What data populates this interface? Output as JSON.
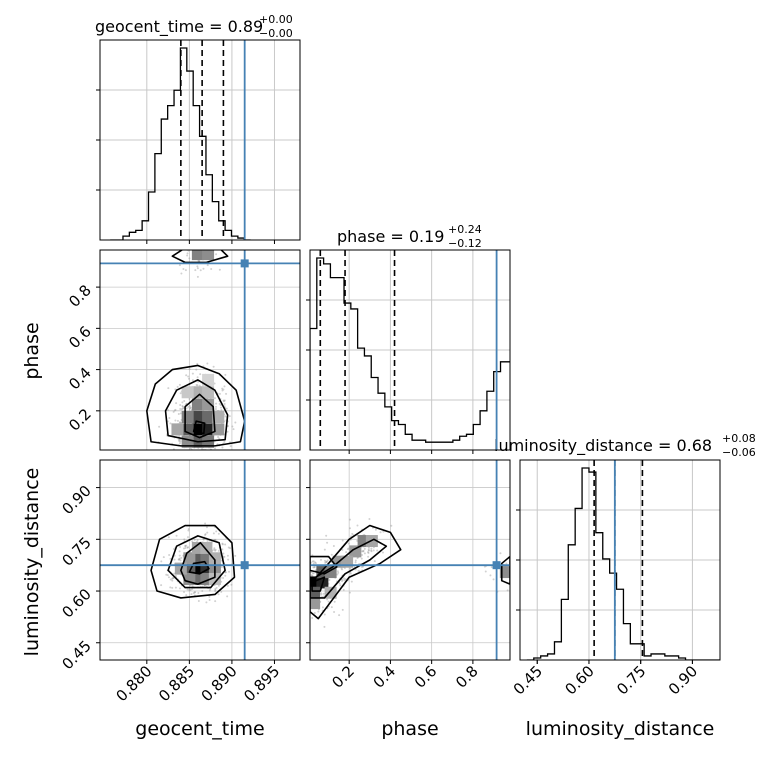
{
  "chart_data": {
    "type": "corner",
    "colors": {
      "truth": "#4682b4",
      "hist": "#000000",
      "grid": "#c8c8c8",
      "points": "#9a9a9a"
    },
    "parameters": [
      {
        "name": "geocent_time",
        "truth": 0.8915,
        "range": [
          0.8745,
          0.898
        ],
        "ticks": [
          "0.880",
          "0.885",
          "0.890",
          "0.895"
        ],
        "ticks_values": [
          0.88,
          0.885,
          0.89,
          0.895
        ],
        "title_main": "geocent_time = 0.89",
        "title_sup": "+0.00",
        "title_sub": "−0.00",
        "quantiles": [
          0.884,
          0.8865,
          0.889
        ],
        "hist_edges_start": 0.8757,
        "hist_bin_width": 0.00075,
        "hist_counts": [
          0,
          0,
          2,
          4,
          5,
          10,
          25,
          45,
          63,
          70,
          78,
          100,
          88,
          70,
          54,
          34,
          20,
          10,
          5,
          2,
          1,
          0
        ]
      },
      {
        "name": "phase",
        "truth": 0.915,
        "range": [
          0.01,
          0.98
        ],
        "ticks": [
          "0.2",
          "0.4",
          "0.6",
          "0.8"
        ],
        "ticks_values": [
          0.2,
          0.4,
          0.6,
          0.8
        ],
        "title_main": "phase = 0.19",
        "title_sup": "+0.24",
        "title_sub": "−0.12",
        "quantiles": [
          0.06,
          0.18,
          0.42
        ],
        "hist_edges_start": 0.01,
        "hist_bin_width": 0.033,
        "hist_counts": [
          62,
          98,
          95,
          88,
          88,
          75,
          72,
          52,
          48,
          37,
          29,
          22,
          15,
          13,
          8,
          5,
          5,
          4,
          4,
          4,
          4,
          5,
          7,
          8,
          13,
          20,
          30,
          40,
          45,
          45
        ]
      },
      {
        "name": "luminosity_distance",
        "truth": 0.675,
        "range": [
          0.4,
          0.98
        ],
        "ticks": [
          "0.45",
          "0.60",
          "0.75",
          "0.90"
        ],
        "ticks_values": [
          0.45,
          0.6,
          0.75,
          0.9
        ],
        "title_main": "luminosity_distance = 0.68",
        "title_sup": "+0.08",
        "title_sub": "−0.06",
        "quantiles": [
          0.615,
          0.675,
          0.755
        ],
        "hist_edges_start": 0.42,
        "hist_bin_width": 0.02,
        "hist_counts": [
          0,
          1,
          2,
          3,
          9,
          30,
          57,
          75,
          95,
          93,
          63,
          50,
          43,
          35,
          18,
          8,
          8,
          2,
          3,
          3,
          2,
          2,
          1,
          0,
          0,
          0,
          0,
          0
        ]
      }
    ],
    "pairs": [
      {
        "x": "geocent_time",
        "y": "phase",
        "truth_point": [
          0.8915,
          0.915
        ],
        "contours": [
          [
            [
              0.8805,
              0.05
            ],
            [
              0.88,
              0.2
            ],
            [
              0.881,
              0.33
            ],
            [
              0.883,
              0.4
            ],
            [
              0.886,
              0.42
            ],
            [
              0.8885,
              0.38
            ],
            [
              0.8905,
              0.3
            ],
            [
              0.8915,
              0.15
            ],
            [
              0.891,
              0.05
            ],
            [
              0.888,
              0.03
            ],
            [
              0.884,
              0.03
            ]
          ],
          [
            [
              0.8825,
              0.08
            ],
            [
              0.8822,
              0.2
            ],
            [
              0.8835,
              0.3
            ],
            [
              0.886,
              0.35
            ],
            [
              0.888,
              0.3
            ],
            [
              0.8895,
              0.18
            ],
            [
              0.8892,
              0.06
            ],
            [
              0.886,
              0.05
            ]
          ],
          [
            [
              0.8845,
              0.1
            ],
            [
              0.8845,
              0.22
            ],
            [
              0.8862,
              0.28
            ],
            [
              0.8878,
              0.22
            ],
            [
              0.888,
              0.1
            ],
            [
              0.8862,
              0.07
            ]
          ],
          [
            [
              0.8855,
              0.1
            ],
            [
              0.8858,
              0.15
            ],
            [
              0.8868,
              0.14
            ],
            [
              0.8867,
              0.09
            ]
          ],
          [
            [
              0.883,
              0.95
            ],
            [
              0.8845,
              0.99
            ],
            [
              0.8885,
              0.99
            ],
            [
              0.8895,
              0.95
            ],
            [
              0.887,
              0.92
            ],
            [
              0.8845,
              0.92
            ]
          ]
        ],
        "density_cells": [
          [
            0.886,
            0.11,
            1.0
          ],
          [
            0.8872,
            0.11,
            0.85
          ],
          [
            0.8848,
            0.11,
            0.6
          ],
          [
            0.886,
            0.17,
            0.7
          ],
          [
            0.8872,
            0.17,
            0.55
          ],
          [
            0.8848,
            0.17,
            0.45
          ],
          [
            0.886,
            0.23,
            0.45
          ],
          [
            0.8872,
            0.23,
            0.35
          ],
          [
            0.886,
            0.05,
            0.6
          ],
          [
            0.8872,
            0.05,
            0.5
          ],
          [
            0.8848,
            0.05,
            0.4
          ],
          [
            0.8836,
            0.11,
            0.3
          ],
          [
            0.8884,
            0.11,
            0.35
          ],
          [
            0.886,
            0.29,
            0.25
          ],
          [
            0.8872,
            0.29,
            0.2
          ],
          [
            0.8884,
            0.17,
            0.25
          ],
          [
            0.8848,
            0.29,
            0.15
          ],
          [
            0.8872,
            0.35,
            0.1
          ],
          [
            0.886,
            0.96,
            0.45
          ],
          [
            0.8872,
            0.96,
            0.4
          ]
        ]
      },
      {
        "x": "geocent_time",
        "y": "luminosity_distance",
        "truth_point": [
          0.8915,
          0.675
        ],
        "contours": [
          [
            [
              0.8805,
              0.66
            ],
            [
              0.8815,
              0.75
            ],
            [
              0.8845,
              0.79
            ],
            [
              0.888,
              0.79
            ],
            [
              0.89,
              0.74
            ],
            [
              0.8903,
              0.64
            ],
            [
              0.888,
              0.59
            ],
            [
              0.884,
              0.58
            ],
            [
              0.8812,
              0.6
            ]
          ],
          [
            [
              0.8825,
              0.66
            ],
            [
              0.8835,
              0.73
            ],
            [
              0.886,
              0.76
            ],
            [
              0.8885,
              0.74
            ],
            [
              0.8892,
              0.66
            ],
            [
              0.8875,
              0.61
            ],
            [
              0.8845,
              0.61
            ]
          ],
          [
            [
              0.884,
              0.66
            ],
            [
              0.8847,
              0.71
            ],
            [
              0.8863,
              0.74
            ],
            [
              0.888,
              0.69
            ],
            [
              0.888,
              0.64
            ],
            [
              0.886,
              0.62
            ],
            [
              0.8845,
              0.63
            ]
          ],
          [
            [
              0.885,
              0.655
            ],
            [
              0.8855,
              0.68
            ],
            [
              0.8868,
              0.685
            ],
            [
              0.8873,
              0.665
            ],
            [
              0.8862,
              0.65
            ]
          ]
        ],
        "density_cells": [
          [
            0.886,
            0.665,
            1.0
          ],
          [
            0.887,
            0.665,
            0.8
          ],
          [
            0.885,
            0.665,
            0.6
          ],
          [
            0.886,
            0.695,
            0.6
          ],
          [
            0.887,
            0.695,
            0.5
          ],
          [
            0.886,
            0.635,
            0.55
          ],
          [
            0.887,
            0.635,
            0.45
          ],
          [
            0.885,
            0.635,
            0.4
          ],
          [
            0.885,
            0.695,
            0.35
          ],
          [
            0.888,
            0.665,
            0.4
          ],
          [
            0.886,
            0.725,
            0.3
          ],
          [
            0.887,
            0.725,
            0.25
          ],
          [
            0.888,
            0.695,
            0.25
          ],
          [
            0.884,
            0.665,
            0.3
          ],
          [
            0.888,
            0.635,
            0.2
          ]
        ]
      },
      {
        "x": "phase",
        "y": "luminosity_distance",
        "truth_point": [
          0.915,
          0.675
        ],
        "contours": [
          [
            [
              0.01,
              0.62
            ],
            [
              0.1,
              0.68
            ],
            [
              0.2,
              0.75
            ],
            [
              0.3,
              0.79
            ],
            [
              0.4,
              0.77
            ],
            [
              0.45,
              0.72
            ],
            [
              0.35,
              0.68
            ],
            [
              0.2,
              0.64
            ],
            [
              0.1,
              0.56
            ],
            [
              0.05,
              0.52
            ],
            [
              0.01,
              0.54
            ]
          ],
          [
            [
              0.01,
              0.63
            ],
            [
              0.12,
              0.67
            ],
            [
              0.22,
              0.72
            ],
            [
              0.32,
              0.75
            ],
            [
              0.38,
              0.73
            ],
            [
              0.3,
              0.69
            ],
            [
              0.18,
              0.65
            ],
            [
              0.08,
              0.58
            ],
            [
              0.01,
              0.58
            ]
          ],
          [
            [
              0.02,
              0.625
            ],
            [
              0.08,
              0.64
            ],
            [
              0.06,
              0.6
            ],
            [
              0.02,
              0.6
            ]
          ],
          [
            [
              0.01,
              0.7
            ],
            [
              0.1,
              0.7
            ],
            [
              0.14,
              0.67
            ],
            [
              0.08,
              0.65
            ],
            [
              0.01,
              0.66
            ]
          ],
          [
            [
              0.94,
              0.63
            ],
            [
              0.98,
              0.62
            ],
            [
              0.98,
              0.7
            ],
            [
              0.94,
              0.68
            ]
          ]
        ],
        "density_cells": [
          [
            0.03,
            0.625,
            1.0
          ],
          [
            0.07,
            0.625,
            0.85
          ],
          [
            0.03,
            0.595,
            0.6
          ],
          [
            0.07,
            0.655,
            0.6
          ],
          [
            0.11,
            0.655,
            0.45
          ],
          [
            0.15,
            0.685,
            0.35
          ],
          [
            0.23,
            0.715,
            0.35
          ],
          [
            0.27,
            0.745,
            0.45
          ],
          [
            0.31,
            0.745,
            0.3
          ],
          [
            0.19,
            0.685,
            0.3
          ],
          [
            0.03,
            0.565,
            0.35
          ],
          [
            0.11,
            0.595,
            0.25
          ],
          [
            0.96,
            0.655,
            0.4
          ]
        ]
      }
    ]
  }
}
